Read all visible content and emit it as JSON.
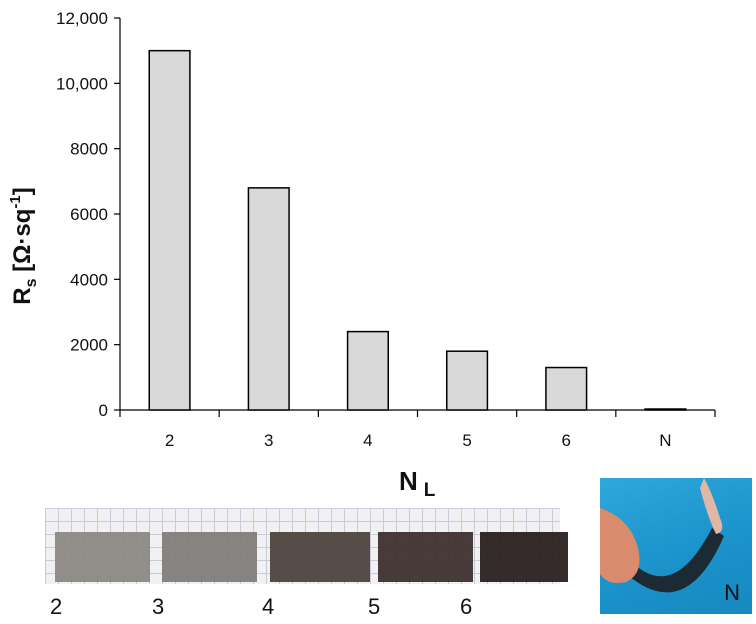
{
  "chart_data": {
    "type": "bar",
    "categories": [
      "2",
      "3",
      "4",
      "5",
      "6",
      "N"
    ],
    "values": [
      11000,
      6800,
      2400,
      1800,
      1300,
      30
    ],
    "ylim": [
      0,
      12000
    ],
    "yticks": [
      0,
      2000,
      4000,
      6000,
      8000,
      10000,
      12000
    ],
    "ytick_labels": [
      "0",
      "2000",
      "4000",
      "6000",
      "8000",
      "10,000",
      "12,000"
    ],
    "ylabel": {
      "main": "R",
      "sub": "s",
      "rest": " [Ω·sq",
      "sup": "-1",
      "close": "]"
    },
    "xlabel": {
      "main": "N",
      "sub": "L"
    },
    "bar_color": "#d9d9d9",
    "bar_edge_color": "#000000",
    "grid": false,
    "legend": "none"
  },
  "photo_strip": {
    "labels": [
      "2",
      "3",
      "4",
      "5",
      "6"
    ],
    "swatch_colors": [
      "#8a8580",
      "#7f7b78",
      "#4a3f3a",
      "#3a2d2a",
      "#251a19"
    ]
  },
  "flexible_photo": {
    "label": "N",
    "background_color": "#1f97cf",
    "film_color": "#1b2a33"
  }
}
